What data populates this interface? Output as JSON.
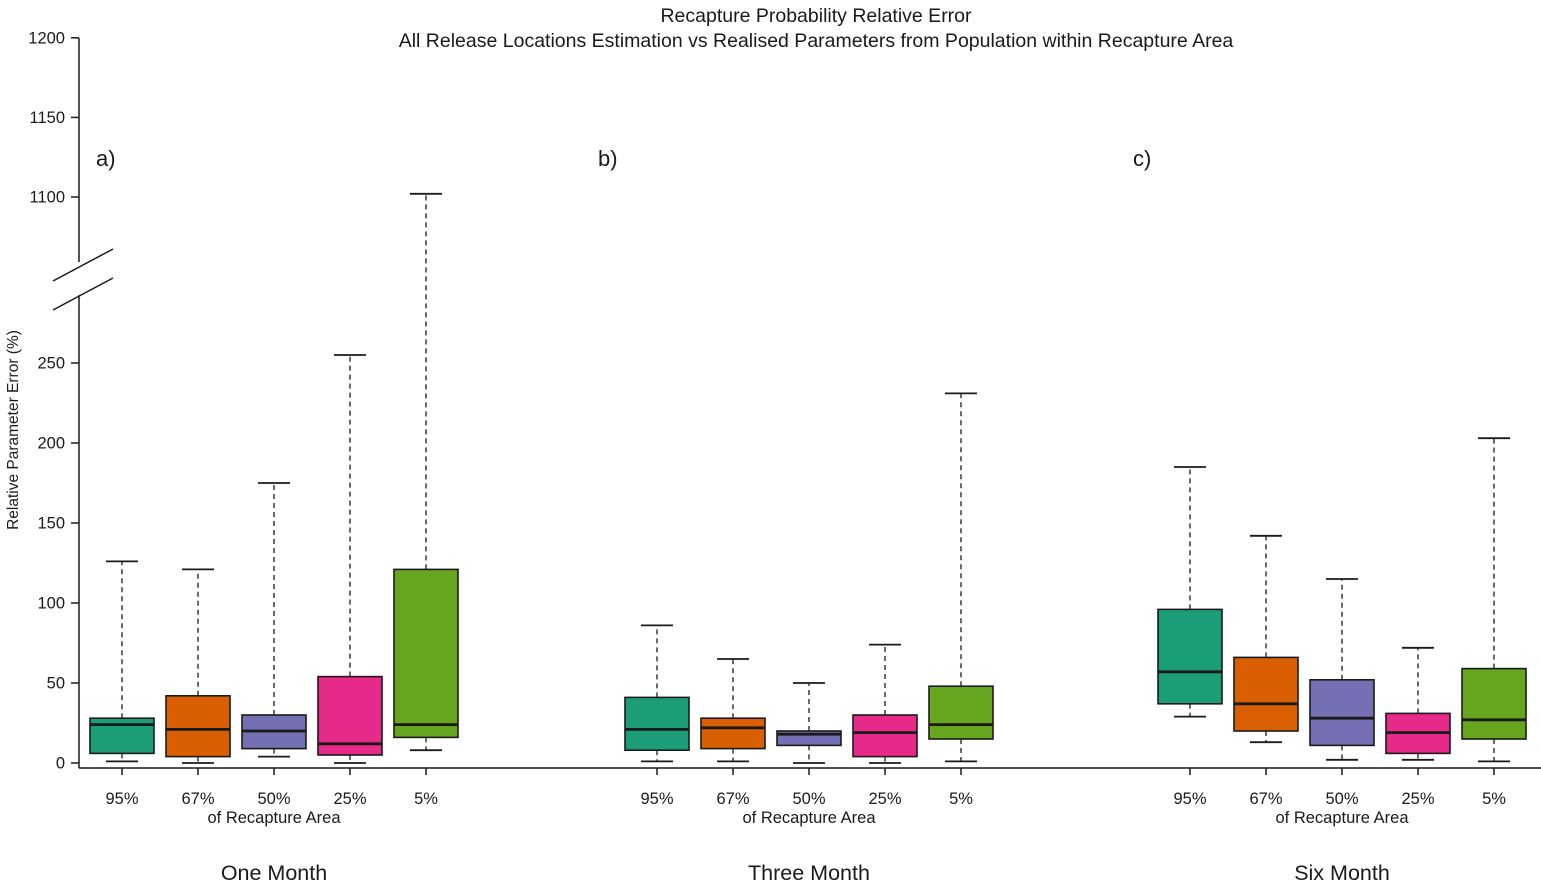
{
  "chart_data": {
    "type": "boxplot",
    "title": "Recapture Probability Relative Error",
    "subtitle": "All Release Locations Estimation vs Realised Parameters from Population within Recapture Area",
    "ylabel": "Relative Parameter Error (%)",
    "xlabel": "of Recapture Area",
    "categories": [
      "95%",
      "67%",
      "50%",
      "25%",
      "5%"
    ],
    "colors": [
      "#1B9E77",
      "#D95F02",
      "#7570B3",
      "#E7298A",
      "#66A61E"
    ],
    "y_axis": {
      "broken": true,
      "lower_ticks": [
        0,
        50,
        100,
        150,
        200,
        250
      ],
      "upper_ticks": [
        1100,
        1150,
        1200
      ],
      "lower_range": [
        0,
        285
      ],
      "upper_range": [
        1065,
        1210
      ]
    },
    "panels": [
      {
        "letter": "a)",
        "label": "One Month",
        "boxes": [
          {
            "category": "95%",
            "low": 1,
            "q1": 6,
            "median": 24,
            "q3": 28,
            "high": 126
          },
          {
            "category": "67%",
            "low": 0,
            "q1": 4,
            "median": 21,
            "q3": 42,
            "high": 121
          },
          {
            "category": "50%",
            "low": 4,
            "q1": 9,
            "median": 20,
            "q3": 30,
            "high": 175
          },
          {
            "category": "25%",
            "low": 0,
            "q1": 5,
            "median": 12,
            "q3": 54,
            "high": 255
          },
          {
            "category": "5%",
            "low": 8,
            "q1": 16,
            "median": 24,
            "q3": 121,
            "high": 1102
          }
        ]
      },
      {
        "letter": "b)",
        "label": "Three Month",
        "boxes": [
          {
            "category": "95%",
            "low": 1,
            "q1": 8,
            "median": 21,
            "q3": 41,
            "high": 86
          },
          {
            "category": "67%",
            "low": 1,
            "q1": 9,
            "median": 22,
            "q3": 28,
            "high": 65
          },
          {
            "category": "50%",
            "low": 0,
            "q1": 11,
            "median": 18,
            "q3": 20,
            "high": 50
          },
          {
            "category": "25%",
            "low": 0,
            "q1": 4,
            "median": 19,
            "q3": 30,
            "high": 74
          },
          {
            "category": "5%",
            "low": 1,
            "q1": 15,
            "median": 24,
            "q3": 48,
            "high": 231
          }
        ]
      },
      {
        "letter": "c)",
        "label": "Six Month",
        "boxes": [
          {
            "category": "95%",
            "low": 29,
            "q1": 37,
            "median": 57,
            "q3": 96,
            "high": 185
          },
          {
            "category": "67%",
            "low": 13,
            "q1": 20,
            "median": 37,
            "q3": 66,
            "high": 142
          },
          {
            "category": "50%",
            "low": 2,
            "q1": 11,
            "median": 28,
            "q3": 52,
            "high": 115
          },
          {
            "category": "25%",
            "low": 2,
            "q1": 6,
            "median": 19,
            "q3": 31,
            "high": 72
          },
          {
            "category": "5%",
            "low": 1,
            "q1": 15,
            "median": 27,
            "q3": 59,
            "high": 203
          }
        ]
      }
    ]
  }
}
